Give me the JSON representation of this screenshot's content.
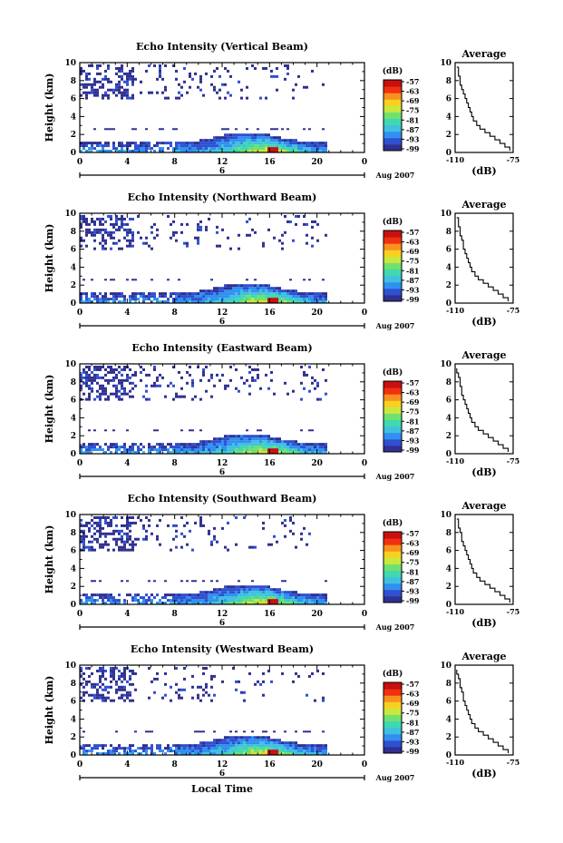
{
  "colors": {
    "colormap": [
      "#303090",
      "#3050d0",
      "#3090f0",
      "#40c0e0",
      "#40d8b0",
      "#70e070",
      "#c8e840",
      "#f8d020",
      "#f89020",
      "#f03010",
      "#c81010"
    ],
    "ink": "#000000"
  },
  "chart_data": [
    {
      "type": "heatmap",
      "title": "Echo Intensity (Vertical Beam)",
      "ylabel": "Height (km)",
      "x_ticks": [
        "0",
        "4",
        "8",
        "12",
        "16",
        "20",
        "0"
      ],
      "y_ticks": [
        "0",
        "2",
        "4",
        "6",
        "8",
        "10"
      ],
      "xlim": [
        0,
        24
      ],
      "ylim": [
        0,
        10
      ],
      "date_day": "6",
      "date_label": "Aug 2007",
      "colorbar": {
        "unit": "(dB)",
        "ticks": [
          "-57",
          "-63",
          "-69",
          "-75",
          "-81",
          "-87",
          "-93",
          "-99"
        ],
        "range": [
          -99,
          -57
        ]
      },
      "average_profile": {
        "title": "Average",
        "xlabel": "(dB)",
        "x_ticks": [
          "-110",
          "-75"
        ],
        "y_ticks": [
          "0",
          "2",
          "4",
          "6",
          "8",
          "10"
        ],
        "xlim": [
          -110,
          -75
        ],
        "ylim": [
          0,
          10
        ],
        "height_km": [
          0.2,
          0.6,
          1.0,
          1.4,
          1.8,
          2.2,
          2.6,
          3.0,
          3.5,
          4.0,
          4.5,
          5.0,
          5.5,
          6.0,
          6.5,
          7.0,
          7.5,
          8.0,
          8.5,
          9.0,
          9.5
        ],
        "db": [
          -77,
          -80,
          -83,
          -86,
          -89,
          -92,
          -95,
          -97,
          -99,
          -100,
          -101,
          -102,
          -103,
          -104,
          -105,
          -106,
          -107,
          -107,
          -108,
          -108,
          -109
        ]
      }
    },
    {
      "type": "heatmap",
      "title": "Echo Intensity (Northward Beam)",
      "ylabel": "Height (km)",
      "x_ticks": [
        "0",
        "4",
        "8",
        "12",
        "16",
        "20",
        "0"
      ],
      "y_ticks": [
        "0",
        "2",
        "4",
        "6",
        "8",
        "10"
      ],
      "xlim": [
        0,
        24
      ],
      "ylim": [
        0,
        10
      ],
      "date_day": "6",
      "date_label": "Aug 2007",
      "colorbar": {
        "unit": "(dB)",
        "ticks": [
          "-57",
          "-63",
          "-69",
          "-75",
          "-81",
          "-87",
          "-93",
          "-99"
        ],
        "range": [
          -99,
          -57
        ]
      },
      "average_profile": {
        "title": "Average",
        "xlabel": "(dB)",
        "x_ticks": [
          "-110",
          "-75"
        ],
        "y_ticks": [
          "0",
          "2",
          "4",
          "6",
          "8",
          "10"
        ],
        "xlim": [
          -110,
          -75
        ],
        "ylim": [
          0,
          10
        ],
        "height_km": [
          0.2,
          0.6,
          1.0,
          1.4,
          1.8,
          2.2,
          2.6,
          3.0,
          3.5,
          4.0,
          4.5,
          5.0,
          5.5,
          6.0,
          6.5,
          7.0,
          7.5,
          8.0,
          8.5,
          9.0,
          9.5
        ],
        "db": [
          -78,
          -81,
          -84,
          -87,
          -90,
          -93,
          -96,
          -98,
          -100,
          -101,
          -102,
          -103,
          -104,
          -105,
          -105,
          -106,
          -107,
          -107,
          -108,
          -108,
          -109
        ]
      }
    },
    {
      "type": "heatmap",
      "title": "Echo Intensity (Eastward Beam)",
      "ylabel": "Height (km)",
      "x_ticks": [
        "0",
        "4",
        "8",
        "12",
        "16",
        "20",
        "0"
      ],
      "y_ticks": [
        "0",
        "2",
        "4",
        "6",
        "8",
        "10"
      ],
      "xlim": [
        0,
        24
      ],
      "ylim": [
        0,
        10
      ],
      "date_day": "6",
      "date_label": "Aug 2007",
      "colorbar": {
        "unit": "(dB)",
        "ticks": [
          "-57",
          "-63",
          "-69",
          "-75",
          "-81",
          "-87",
          "-93",
          "-99"
        ],
        "range": [
          -99,
          -57
        ]
      },
      "average_profile": {
        "title": "Average",
        "xlabel": "(dB)",
        "x_ticks": [
          "-110",
          "-75"
        ],
        "y_ticks": [
          "0",
          "2",
          "4",
          "6",
          "8",
          "10"
        ],
        "xlim": [
          -110,
          -75
        ],
        "ylim": [
          0,
          10
        ],
        "height_km": [
          0.2,
          0.6,
          1.0,
          1.4,
          1.8,
          2.2,
          2.6,
          3.0,
          3.5,
          4.0,
          4.5,
          5.0,
          5.5,
          6.0,
          6.5,
          7.0,
          7.5,
          8.0,
          8.5,
          9.0,
          9.5
        ],
        "db": [
          -78,
          -81,
          -84,
          -87,
          -90,
          -93,
          -96,
          -98,
          -100,
          -101,
          -102,
          -103,
          -104,
          -105,
          -106,
          -106,
          -107,
          -107,
          -108,
          -109,
          -109
        ]
      }
    },
    {
      "type": "heatmap",
      "title": "Echo Intensity (Southward Beam)",
      "ylabel": "Height (km)",
      "x_ticks": [
        "0",
        "4",
        "8",
        "12",
        "16",
        "20",
        "0"
      ],
      "y_ticks": [
        "0",
        "2",
        "4",
        "6",
        "8",
        "10"
      ],
      "xlim": [
        0,
        24
      ],
      "ylim": [
        0,
        10
      ],
      "date_day": "6",
      "date_label": "Aug 2007",
      "colorbar": {
        "unit": "(dB)",
        "ticks": [
          "-57",
          "-63",
          "-69",
          "-75",
          "-81",
          "-87",
          "-93",
          "-99"
        ],
        "range": [
          -99,
          -57
        ]
      },
      "average_profile": {
        "title": "Average",
        "xlabel": "(dB)",
        "x_ticks": [
          "-110",
          "-75"
        ],
        "y_ticks": [
          "0",
          "2",
          "4",
          "6",
          "8",
          "10"
        ],
        "xlim": [
          -110,
          -75
        ],
        "ylim": [
          0,
          10
        ],
        "height_km": [
          0.2,
          0.6,
          1.0,
          1.4,
          1.8,
          2.2,
          2.6,
          3.0,
          3.5,
          4.0,
          4.5,
          5.0,
          5.5,
          6.0,
          6.5,
          7.0,
          7.5,
          8.0,
          8.5,
          9.0,
          9.5
        ],
        "db": [
          -77,
          -80,
          -83,
          -86,
          -89,
          -92,
          -95,
          -97,
          -99,
          -100,
          -101,
          -102,
          -103,
          -104,
          -105,
          -106,
          -106,
          -107,
          -108,
          -108,
          -109
        ]
      }
    },
    {
      "type": "heatmap",
      "title": "Echo Intensity (Westward Beam)",
      "ylabel": "Height (km)",
      "xlabel": "Local Time",
      "x_ticks": [
        "0",
        "4",
        "8",
        "12",
        "16",
        "20",
        "0"
      ],
      "y_ticks": [
        "0",
        "2",
        "4",
        "6",
        "8",
        "10"
      ],
      "xlim": [
        0,
        24
      ],
      "ylim": [
        0,
        10
      ],
      "date_day": "6",
      "date_label": "Aug 2007",
      "colorbar": {
        "unit": "(dB)",
        "ticks": [
          "-57",
          "-63",
          "-69",
          "-75",
          "-81",
          "-87",
          "-93",
          "-99"
        ],
        "range": [
          -99,
          -57
        ]
      },
      "average_profile": {
        "title": "Average",
        "xlabel": "(dB)",
        "x_ticks": [
          "-110",
          "-75"
        ],
        "y_ticks": [
          "0",
          "2",
          "4",
          "6",
          "8",
          "10"
        ],
        "xlim": [
          -110,
          -75
        ],
        "ylim": [
          0,
          10
        ],
        "height_km": [
          0.2,
          0.6,
          1.0,
          1.4,
          1.8,
          2.2,
          2.6,
          3.0,
          3.5,
          4.0,
          4.5,
          5.0,
          5.5,
          6.0,
          6.5,
          7.0,
          7.5,
          8.0,
          8.5,
          9.0,
          9.5
        ],
        "db": [
          -78,
          -81,
          -84,
          -87,
          -90,
          -93,
          -96,
          -98,
          -100,
          -101,
          -102,
          -103,
          -104,
          -105,
          -105,
          -106,
          -107,
          -107,
          -108,
          -109,
          -109
        ]
      }
    }
  ]
}
